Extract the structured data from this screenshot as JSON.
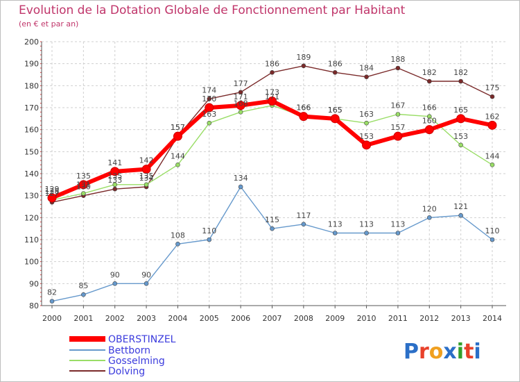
{
  "chart_data": {
    "type": "line",
    "title": "Evolution de la Dotation Globale de Fonctionnement par Habitant",
    "subtitle": "(en € et par an)",
    "x": [
      "2000",
      "2001",
      "2002",
      "2003",
      "2004",
      "2005",
      "2006",
      "2007",
      "2008",
      "2009",
      "2010",
      "2011",
      "2012",
      "2013",
      "2014"
    ],
    "ylim": [
      80,
      200
    ],
    "yticks": [
      80,
      90,
      100,
      110,
      120,
      130,
      140,
      150,
      160,
      170,
      180,
      190,
      200
    ],
    "grid": true,
    "legend_position": "bottom-left",
    "series": [
      {
        "name": "OBERSTINZEL",
        "color": "#ff0000",
        "values": [
          129,
          135,
          141,
          142,
          157,
          170,
          171,
          173,
          166,
          165,
          153,
          157,
          160,
          165,
          162
        ]
      },
      {
        "name": "Bettborn",
        "color": "#6699cc",
        "values": [
          82,
          85,
          90,
          90,
          108,
          110,
          134,
          115,
          117,
          113,
          113,
          113,
          120,
          121,
          110
        ]
      },
      {
        "name": "Gosselming",
        "color": "#99dd66",
        "values": [
          128,
          131,
          135,
          135,
          144,
          163,
          168,
          171,
          166,
          165,
          163,
          167,
          166,
          153,
          144
        ]
      },
      {
        "name": "Dolving",
        "color": "#7a2a2a",
        "values": [
          127,
          130,
          133,
          134,
          157,
          174,
          177,
          186,
          189,
          186,
          184,
          188,
          182,
          182,
          175
        ]
      }
    ]
  },
  "brand": {
    "letters": [
      "P",
      "r",
      "o",
      "x",
      "i",
      "t",
      "i"
    ],
    "colors": [
      "#2b6fc7",
      "#e8412a",
      "#f0a020",
      "#2b6fc7",
      "#33a02c",
      "#e8412a",
      "#2b6fc7"
    ]
  }
}
